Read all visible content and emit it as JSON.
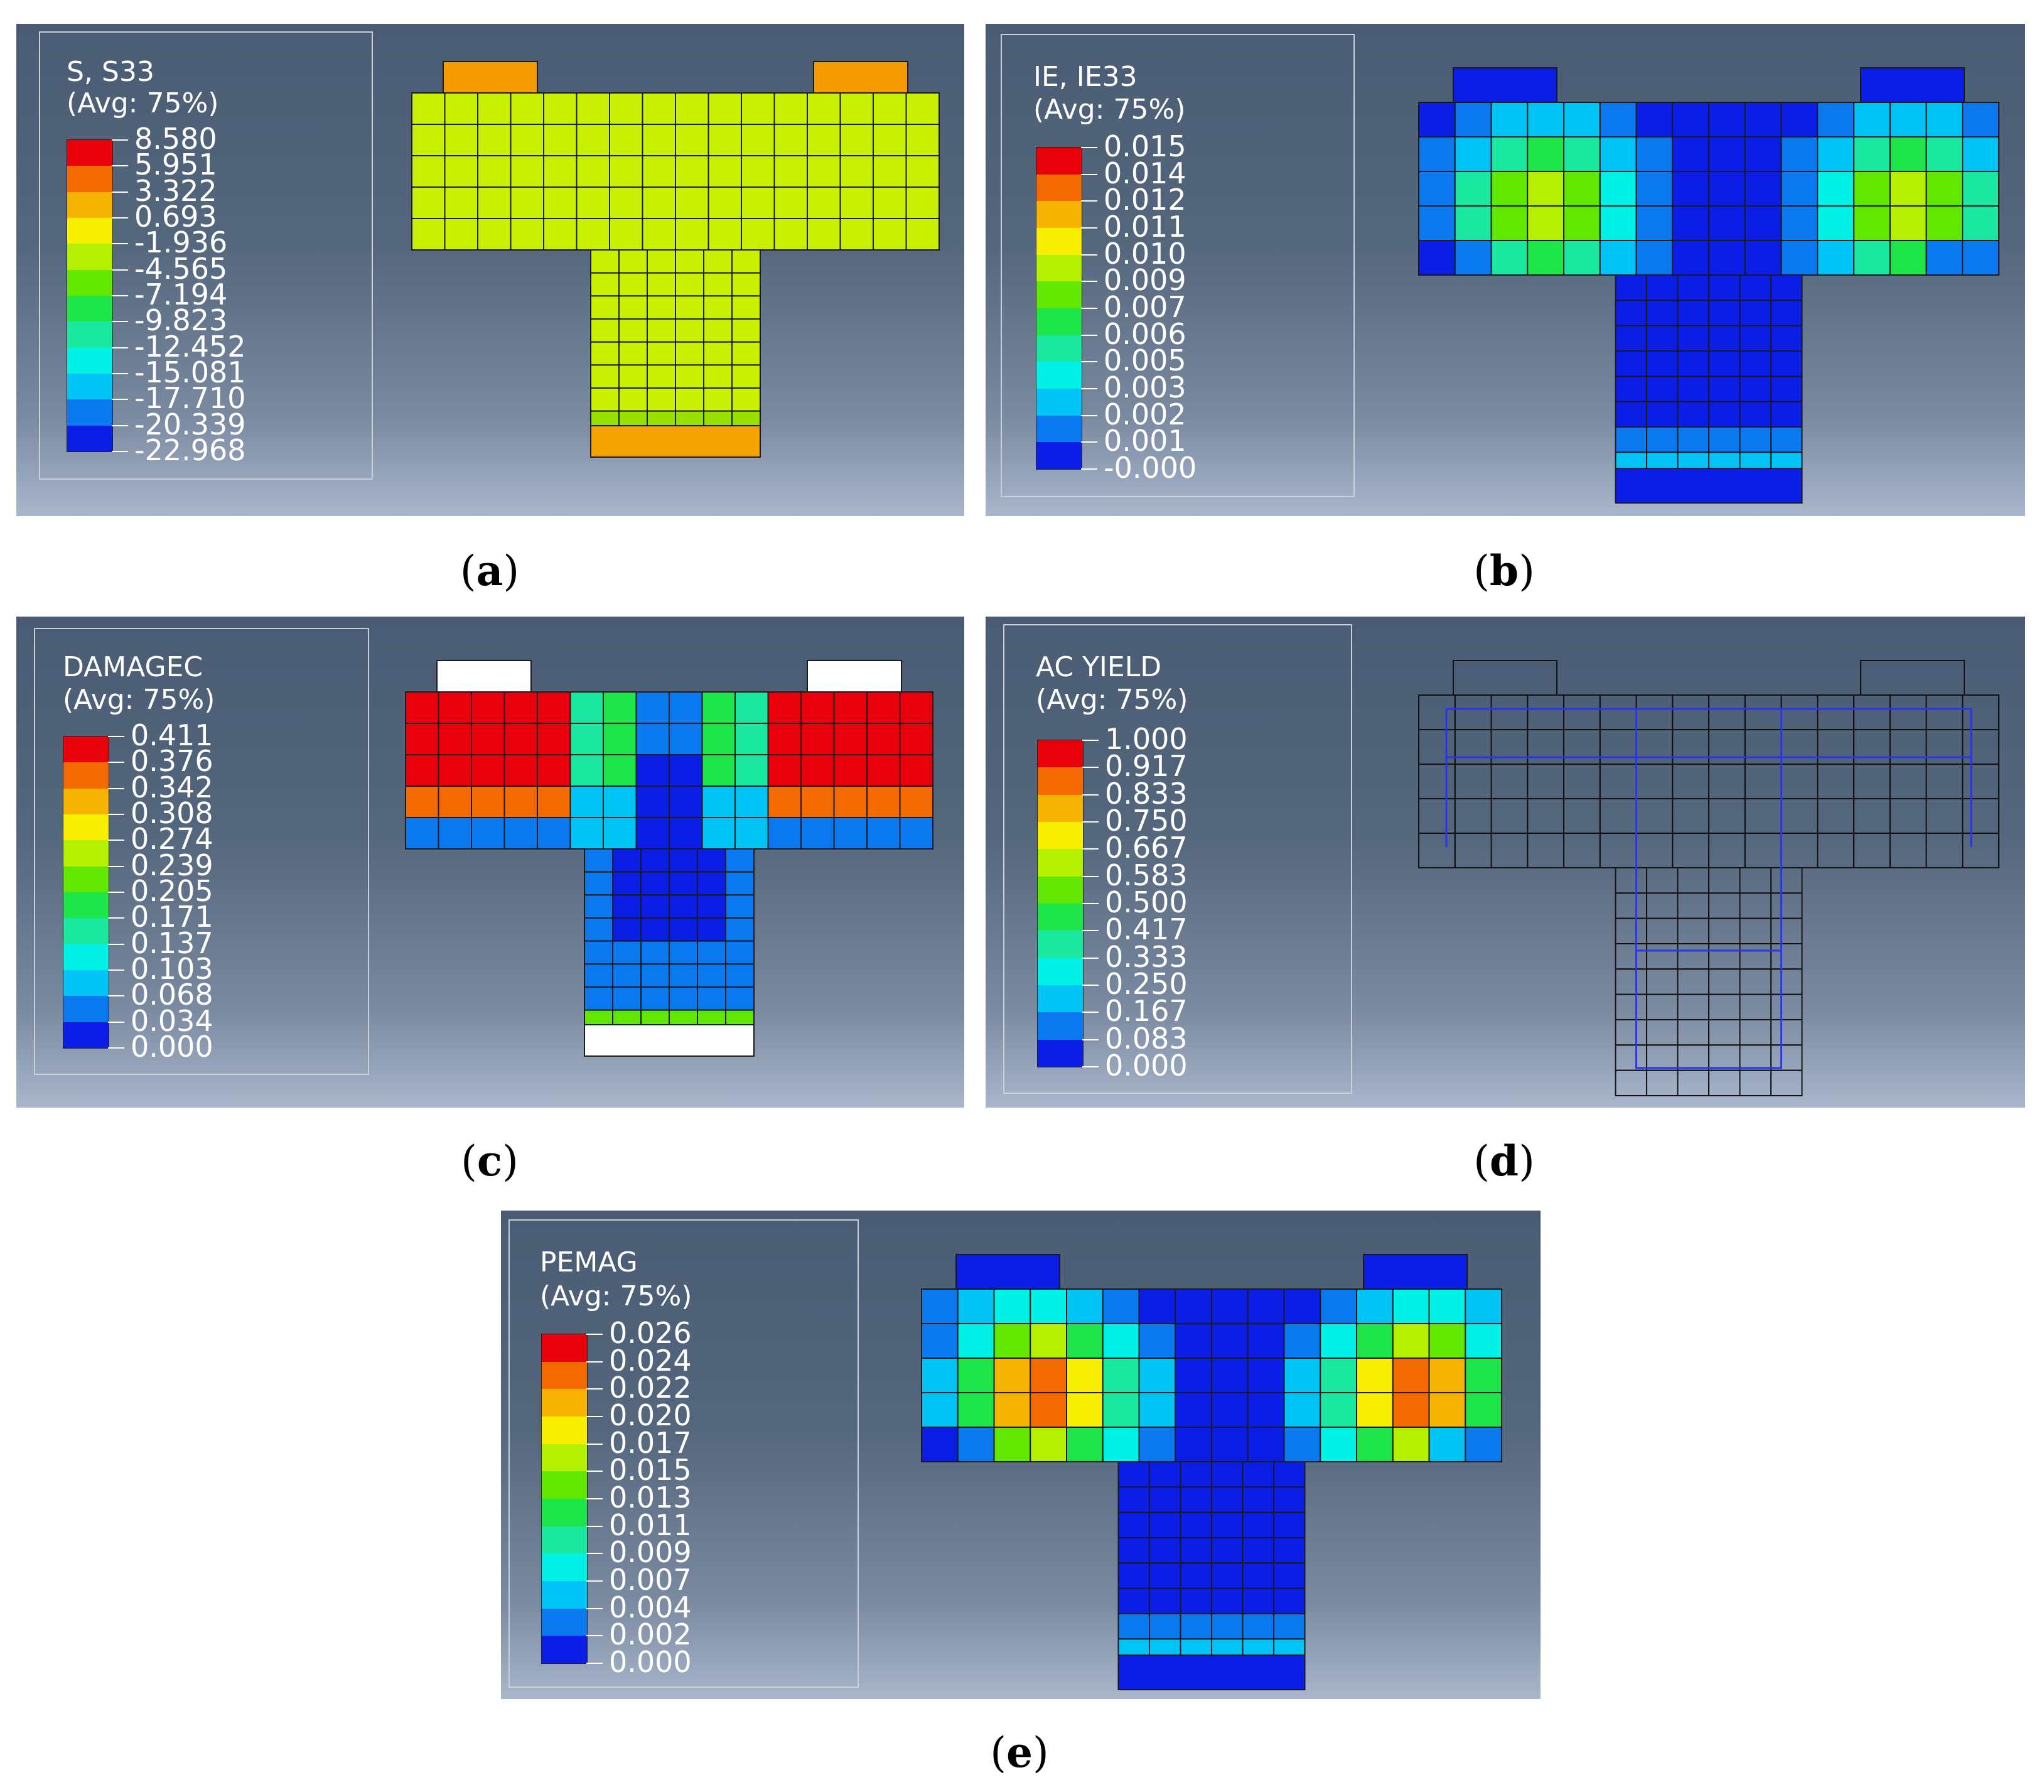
{
  "panels": [
    {
      "id": "a",
      "caption": "a",
      "title": "S, S33",
      "subtitle": "(Avg: 75%)",
      "values": [
        "8.580",
        "5.951",
        "3.322",
        "0.693",
        "-1.936",
        "-4.565",
        "-7.194",
        "-9.823",
        "-12.452",
        "-15.081",
        "-17.710",
        "-20.339",
        "-22.968"
      ],
      "fill": "#c8f000"
    },
    {
      "id": "b",
      "caption": "b",
      "title": "IE, IE33",
      "subtitle": "(Avg: 75%)",
      "values": [
        "0.015",
        "0.014",
        "0.012",
        "0.011",
        "0.010",
        "0.009",
        "0.007",
        "0.006",
        "0.005",
        "0.003",
        "0.002",
        "0.001",
        "-0.000"
      ],
      "fill": "#0a1ee6"
    },
    {
      "id": "c",
      "caption": "c",
      "title": "DAMAGEC",
      "subtitle": "(Avg: 75%)",
      "values": [
        "0.411",
        "0.376",
        "0.342",
        "0.308",
        "0.274",
        "0.239",
        "0.205",
        "0.171",
        "0.137",
        "0.103",
        "0.068",
        "0.034",
        "0.000"
      ],
      "fill": "#ee0e0e"
    },
    {
      "id": "d",
      "caption": "d",
      "title": "AC YIELD",
      "subtitle": "(Avg: 75%)",
      "values": [
        "1.000",
        "0.917",
        "0.833",
        "0.750",
        "0.667",
        "0.583",
        "0.500",
        "0.417",
        "0.333",
        "0.250",
        "0.167",
        "0.083",
        "0.000"
      ],
      "fill": "none"
    },
    {
      "id": "e",
      "caption": "e",
      "title": "PEMAG",
      "subtitle": "(Avg: 75%)",
      "values": [
        "0.026",
        "0.024",
        "0.022",
        "0.020",
        "0.017",
        "0.015",
        "0.013",
        "0.011",
        "0.009",
        "0.007",
        "0.004",
        "0.002",
        "0.000"
      ],
      "fill": "#0a1ee6"
    }
  ],
  "colormap": [
    "#e8000b",
    "#f26a00",
    "#f5b300",
    "#f8f000",
    "#b5f000",
    "#62e800",
    "#1ee64a",
    "#1ae8a0",
    "#00f2e6",
    "#00c4f5",
    "#0a78ee",
    "#0a1ee6"
  ]
}
